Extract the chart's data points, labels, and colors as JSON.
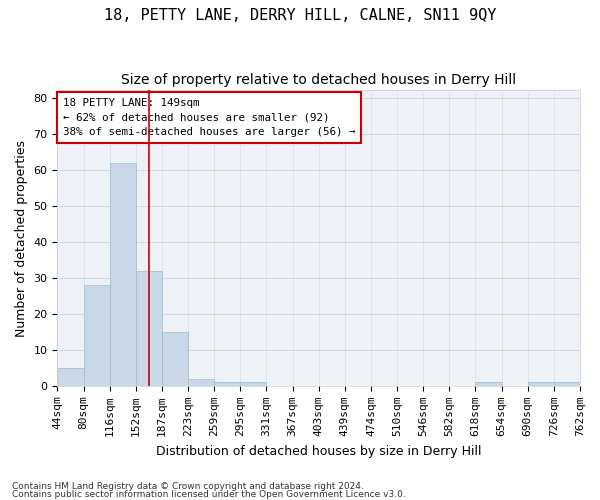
{
  "title": "18, PETTY LANE, DERRY HILL, CALNE, SN11 9QY",
  "subtitle": "Size of property relative to detached houses in Derry Hill",
  "xlabel": "Distribution of detached houses by size in Derry Hill",
  "ylabel": "Number of detached properties",
  "footnote1": "Contains HM Land Registry data © Crown copyright and database right 2024.",
  "footnote2": "Contains public sector information licensed under the Open Government Licence v3.0.",
  "bin_labels": [
    "44sqm",
    "80sqm",
    "116sqm",
    "152sqm",
    "187sqm",
    "223sqm",
    "259sqm",
    "295sqm",
    "331sqm",
    "367sqm",
    "403sqm",
    "439sqm",
    "474sqm",
    "510sqm",
    "546sqm",
    "582sqm",
    "618sqm",
    "654sqm",
    "690sqm",
    "726sqm",
    "762sqm"
  ],
  "bar_values": [
    5,
    28,
    62,
    32,
    15,
    2,
    1,
    1,
    0,
    0,
    0,
    0,
    0,
    0,
    0,
    0,
    1,
    0,
    1,
    1
  ],
  "bar_color": "#c8d8e8",
  "bar_edge_color": "#a0b8d0",
  "vline_color": "#cc0000",
  "vline_x_index": 3,
  "ylim": [
    0,
    82
  ],
  "yticks": [
    0,
    10,
    20,
    30,
    40,
    50,
    60,
    70,
    80
  ],
  "annotation_line1": "18 PETTY LANE: 149sqm",
  "annotation_line2": "← 62% of detached houses are smaller (92)",
  "annotation_line3": "38% of semi-detached houses are larger (56) →",
  "annotation_box_color": "#ffffff",
  "annotation_box_edge": "#cc0000",
  "grid_color": "#d0d8e8",
  "bg_color": "#eef2f7",
  "title_fontsize": 11,
  "subtitle_fontsize": 10,
  "label_fontsize": 9,
  "tick_fontsize": 8
}
